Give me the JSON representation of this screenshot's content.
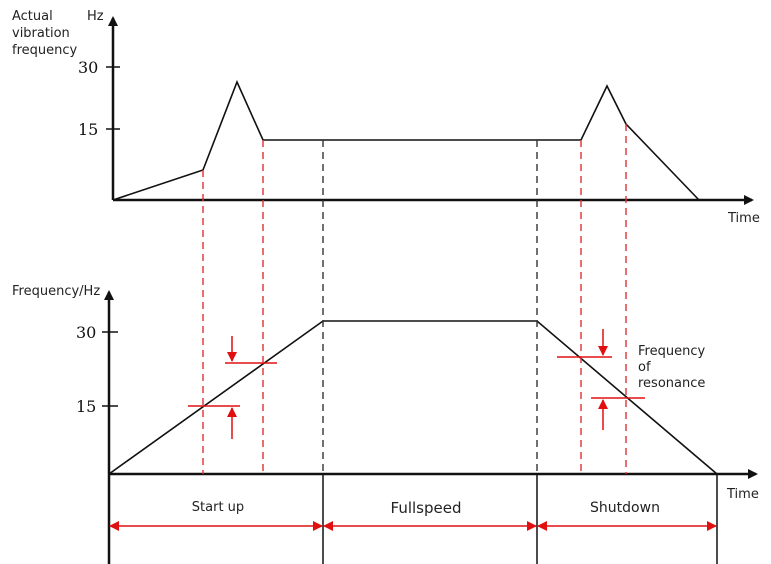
{
  "top_chart": {
    "ylabel_lines": [
      "Actual",
      "vibration",
      "frequency"
    ],
    "unit": "Hz",
    "y_ticks": [
      "30",
      "15"
    ],
    "xlabel": "Time"
  },
  "bottom_chart": {
    "ylabel": "Frequency/Hz",
    "y_ticks": [
      "30",
      "15"
    ],
    "xlabel": "Time",
    "annotation_lines": [
      "Frequency",
      "of",
      "resonance"
    ],
    "phases": [
      "Start up",
      "Fullspeed",
      "Shutdown"
    ]
  },
  "colors": {
    "curve": "#111111",
    "guide_red": "#e03030",
    "guide_black": "#333333",
    "arrow_red": "#e01010"
  }
}
